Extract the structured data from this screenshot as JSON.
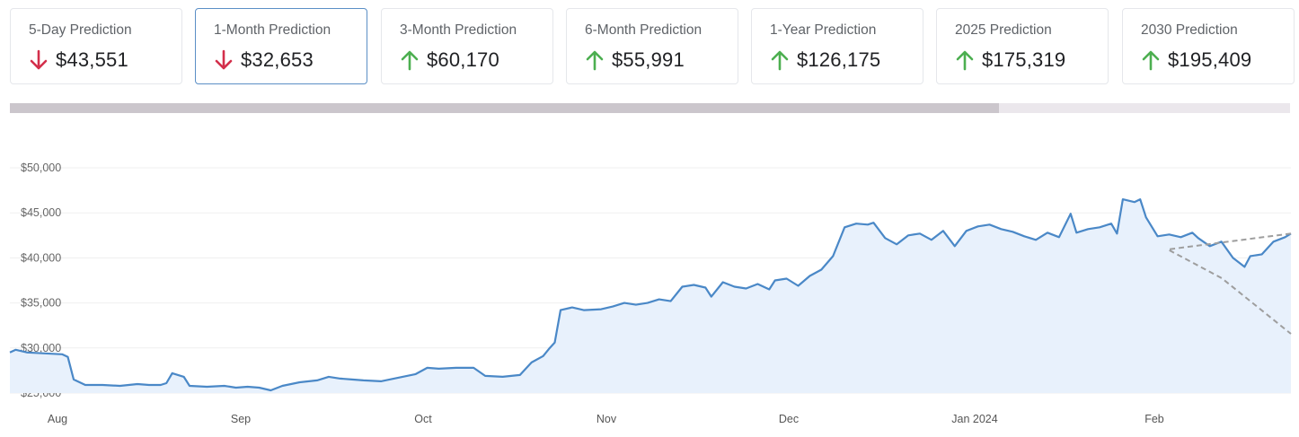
{
  "predictions": [
    {
      "label": "5-Day Prediction",
      "value": "$43,551",
      "direction": "down",
      "active": false
    },
    {
      "label": "1-Month Prediction",
      "value": "$32,653",
      "direction": "down",
      "active": true
    },
    {
      "label": "3-Month Prediction",
      "value": "$60,170",
      "direction": "up",
      "active": false
    },
    {
      "label": "6-Month Prediction",
      "value": "$55,991",
      "direction": "up",
      "active": false
    },
    {
      "label": "1-Year Prediction",
      "value": "$126,175",
      "direction": "up",
      "active": false
    },
    {
      "label": "2025 Prediction",
      "value": "$175,319",
      "direction": "up",
      "active": false
    },
    {
      "label": "2030 Prediction",
      "value": "$195,409",
      "direction": "up",
      "active": false
    }
  ],
  "colors": {
    "down_arrow": "#d32f4b",
    "up_arrow": "#4caf50",
    "line": "#4a88c7",
    "fill": "#e8f1fc",
    "forecast_line": "#9e9e9e",
    "forecast_fill": "#f3f3f4",
    "active_border": "#5b8fc6"
  },
  "icons": {
    "down": "arrow-down-icon",
    "up": "arrow-up-icon"
  },
  "chart_data": {
    "type": "area",
    "title": "",
    "xlabel": "",
    "ylabel": "",
    "ylim": [
      25000,
      50000
    ],
    "yticks": [
      "$50,000",
      "$45,000",
      "$40,000",
      "$35,000",
      "$30,000",
      "$25,000"
    ],
    "xticks": [
      "Aug",
      "Sep",
      "Oct",
      "Nov",
      "Dec",
      "Jan 2024",
      "Feb"
    ],
    "x_range": [
      "2023-07-22",
      "2024-02-28"
    ],
    "grid": "horizontal",
    "legend": "none",
    "series": [
      {
        "kind": "actual",
        "points": [
          [
            "2023-07-22",
            29500
          ],
          [
            "2023-07-23",
            29800
          ],
          [
            "2023-07-25",
            29500
          ],
          [
            "2023-07-28",
            29400
          ],
          [
            "2023-07-31",
            29300
          ],
          [
            "2023-08-01",
            29000
          ],
          [
            "2023-08-02",
            26500
          ],
          [
            "2023-08-04",
            25900
          ],
          [
            "2023-08-07",
            25900
          ],
          [
            "2023-08-10",
            25800
          ],
          [
            "2023-08-13",
            26000
          ],
          [
            "2023-08-15",
            25900
          ],
          [
            "2023-08-17",
            25900
          ],
          [
            "2023-08-18",
            26100
          ],
          [
            "2023-08-19",
            27200
          ],
          [
            "2023-08-21",
            26800
          ],
          [
            "2023-08-22",
            25800
          ],
          [
            "2023-08-25",
            25700
          ],
          [
            "2023-08-28",
            25800
          ],
          [
            "2023-08-30",
            25600
          ],
          [
            "2023-09-01",
            25700
          ],
          [
            "2023-09-03",
            25600
          ],
          [
            "2023-09-05",
            25300
          ],
          [
            "2023-09-07",
            25800
          ],
          [
            "2023-09-10",
            26200
          ],
          [
            "2023-09-13",
            26400
          ],
          [
            "2023-09-15",
            26800
          ],
          [
            "2023-09-17",
            26600
          ],
          [
            "2023-09-19",
            26500
          ],
          [
            "2023-09-21",
            26400
          ],
          [
            "2023-09-24",
            26300
          ],
          [
            "2023-09-27",
            26700
          ],
          [
            "2023-09-30",
            27100
          ],
          [
            "2023-10-02",
            27800
          ],
          [
            "2023-10-04",
            27700
          ],
          [
            "2023-10-07",
            27800
          ],
          [
            "2023-10-10",
            27800
          ],
          [
            "2023-10-12",
            26900
          ],
          [
            "2023-10-15",
            26800
          ],
          [
            "2023-10-18",
            27000
          ],
          [
            "2023-10-20",
            28400
          ],
          [
            "2023-10-22",
            29100
          ],
          [
            "2023-10-23",
            29900
          ],
          [
            "2023-10-24",
            30600
          ],
          [
            "2023-10-25",
            34200
          ],
          [
            "2023-10-27",
            34500
          ],
          [
            "2023-10-29",
            34200
          ],
          [
            "2023-11-01",
            34300
          ],
          [
            "2023-11-03",
            34600
          ],
          [
            "2023-11-05",
            35000
          ],
          [
            "2023-11-07",
            34800
          ],
          [
            "2023-11-09",
            35000
          ],
          [
            "2023-11-11",
            35400
          ],
          [
            "2023-11-13",
            35200
          ],
          [
            "2023-11-15",
            36800
          ],
          [
            "2023-11-17",
            37000
          ],
          [
            "2023-11-19",
            36700
          ],
          [
            "2023-11-20",
            35700
          ],
          [
            "2023-11-22",
            37300
          ],
          [
            "2023-11-24",
            36800
          ],
          [
            "2023-11-26",
            36600
          ],
          [
            "2023-11-28",
            37100
          ],
          [
            "2023-11-30",
            36500
          ],
          [
            "2023-12-01",
            37500
          ],
          [
            "2023-12-03",
            37700
          ],
          [
            "2023-12-05",
            36900
          ],
          [
            "2023-12-07",
            38000
          ],
          [
            "2023-12-09",
            38700
          ],
          [
            "2023-12-11",
            40200
          ],
          [
            "2023-12-13",
            43400
          ],
          [
            "2023-12-15",
            43800
          ],
          [
            "2023-12-17",
            43700
          ],
          [
            "2023-12-18",
            43900
          ],
          [
            "2023-12-20",
            42200
          ],
          [
            "2023-12-22",
            41500
          ],
          [
            "2023-12-24",
            42500
          ],
          [
            "2023-12-26",
            42700
          ],
          [
            "2023-12-28",
            42000
          ],
          [
            "2023-12-30",
            43000
          ],
          [
            "2024-01-01",
            41300
          ],
          [
            "2024-01-03",
            43000
          ],
          [
            "2024-01-05",
            43500
          ],
          [
            "2024-01-07",
            43700
          ],
          [
            "2024-01-09",
            43200
          ],
          [
            "2024-01-11",
            42900
          ],
          [
            "2024-01-13",
            42400
          ],
          [
            "2024-01-15",
            42000
          ],
          [
            "2024-01-17",
            42800
          ],
          [
            "2024-01-19",
            42300
          ],
          [
            "2024-01-21",
            44900
          ],
          [
            "2024-01-22",
            42800
          ],
          [
            "2024-01-24",
            43200
          ],
          [
            "2024-01-26",
            43400
          ],
          [
            "2024-01-28",
            43800
          ],
          [
            "2024-01-29",
            42700
          ],
          [
            "2024-01-30",
            46500
          ],
          [
            "2024-02-01",
            46200
          ],
          [
            "2024-02-02",
            46500
          ],
          [
            "2024-02-03",
            44500
          ],
          [
            "2024-02-05",
            42400
          ],
          [
            "2024-02-07",
            42600
          ],
          [
            "2024-02-09",
            42300
          ],
          [
            "2024-02-11",
            42800
          ],
          [
            "2024-02-12",
            42200
          ],
          [
            "2024-02-14",
            41300
          ],
          [
            "2024-02-16",
            41800
          ],
          [
            "2024-02-18",
            40000
          ],
          [
            "2024-02-20",
            39000
          ],
          [
            "2024-02-21",
            40200
          ],
          [
            "2024-02-23",
            40400
          ],
          [
            "2024-02-25",
            41800
          ],
          [
            "2024-02-27",
            42300
          ],
          [
            "2024-02-28",
            42700
          ]
        ]
      }
    ]
  }
}
